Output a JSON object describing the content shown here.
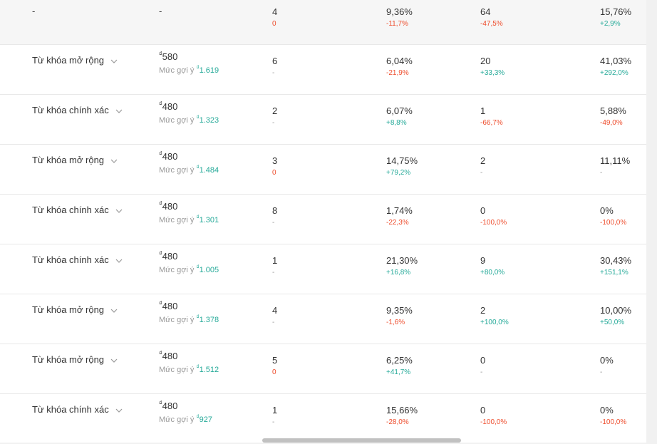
{
  "summary": {
    "col1": "-",
    "col2": "-",
    "impressions": {
      "value": "4",
      "change": "0",
      "tone": "neg"
    },
    "ctr": {
      "value": "9,36%",
      "change": "-11,7%",
      "tone": "neg"
    },
    "clicks": {
      "value": "64",
      "change": "-47,5%",
      "tone": "neg"
    },
    "conv": {
      "value": "15,76%",
      "change": "+2,9%",
      "tone": "pos"
    }
  },
  "currency": "₫",
  "suggest_label": "Mức gợi ý",
  "rows": [
    {
      "match": "Từ khóa mở rộng",
      "bid": "580",
      "suggested": "1.619",
      "impressions": {
        "value": "6",
        "change": "-",
        "tone": "neutral"
      },
      "ctr": {
        "value": "6,04%",
        "change": "-21,9%",
        "tone": "neg"
      },
      "clicks": {
        "value": "20",
        "change": "+33,3%",
        "tone": "pos"
      },
      "conv": {
        "value": "41,03%",
        "change": "+292,0%",
        "tone": "pos"
      }
    },
    {
      "match": "Từ khóa chính xác",
      "bid": "480",
      "suggested": "1.323",
      "impressions": {
        "value": "2",
        "change": "-",
        "tone": "neutral"
      },
      "ctr": {
        "value": "6,07%",
        "change": "+8,8%",
        "tone": "pos"
      },
      "clicks": {
        "value": "1",
        "change": "-66,7%",
        "tone": "neg"
      },
      "conv": {
        "value": "5,88%",
        "change": "-49,0%",
        "tone": "neg"
      }
    },
    {
      "match": "Từ khóa mở rộng",
      "bid": "480",
      "suggested": "1.484",
      "impressions": {
        "value": "3",
        "change": "0",
        "tone": "neg"
      },
      "ctr": {
        "value": "14,75%",
        "change": "+79,2%",
        "tone": "pos"
      },
      "clicks": {
        "value": "2",
        "change": "-",
        "tone": "neutral"
      },
      "conv": {
        "value": "11,11%",
        "change": "-",
        "tone": "neutral"
      }
    },
    {
      "match": "Từ khóa chính xác",
      "bid": "480",
      "suggested": "1.301",
      "impressions": {
        "value": "8",
        "change": "-",
        "tone": "neutral"
      },
      "ctr": {
        "value": "1,74%",
        "change": "-22,3%",
        "tone": "neg"
      },
      "clicks": {
        "value": "0",
        "change": "-100,0%",
        "tone": "neg"
      },
      "conv": {
        "value": "0%",
        "change": "-100,0%",
        "tone": "neg"
      }
    },
    {
      "match": "Từ khóa chính xác",
      "bid": "480",
      "suggested": "1.005",
      "impressions": {
        "value": "1",
        "change": "-",
        "tone": "neutral"
      },
      "ctr": {
        "value": "21,30%",
        "change": "+16,8%",
        "tone": "pos"
      },
      "clicks": {
        "value": "9",
        "change": "+80,0%",
        "tone": "pos"
      },
      "conv": {
        "value": "30,43%",
        "change": "+151,1%",
        "tone": "pos"
      }
    },
    {
      "match": "Từ khóa mở rộng",
      "bid": "480",
      "suggested": "1.378",
      "impressions": {
        "value": "4",
        "change": "-",
        "tone": "neutral"
      },
      "ctr": {
        "value": "9,35%",
        "change": "-1,6%",
        "tone": "neg"
      },
      "clicks": {
        "value": "2",
        "change": "+100,0%",
        "tone": "pos"
      },
      "conv": {
        "value": "10,00%",
        "change": "+50,0%",
        "tone": "pos"
      }
    },
    {
      "match": "Từ khóa mở rộng",
      "bid": "480",
      "suggested": "1.512",
      "impressions": {
        "value": "5",
        "change": "0",
        "tone": "neg"
      },
      "ctr": {
        "value": "6,25%",
        "change": "+41,7%",
        "tone": "pos"
      },
      "clicks": {
        "value": "0",
        "change": "-",
        "tone": "neutral"
      },
      "conv": {
        "value": "0%",
        "change": "-",
        "tone": "neutral"
      }
    },
    {
      "match": "Từ khóa chính xác",
      "bid": "480",
      "suggested": "927",
      "impressions": {
        "value": "1",
        "change": "-",
        "tone": "neutral"
      },
      "ctr": {
        "value": "15,66%",
        "change": "-28,0%",
        "tone": "neg"
      },
      "clicks": {
        "value": "0",
        "change": "-100,0%",
        "tone": "neg"
      },
      "conv": {
        "value": "0%",
        "change": "-100,0%",
        "tone": "neg"
      }
    }
  ],
  "colors": {
    "negative": "#ee4d2d",
    "positive": "#26aa99",
    "neutral": "#999999",
    "text": "#333333"
  },
  "icons": {
    "match_dropdown": "chevron-down-icon"
  }
}
